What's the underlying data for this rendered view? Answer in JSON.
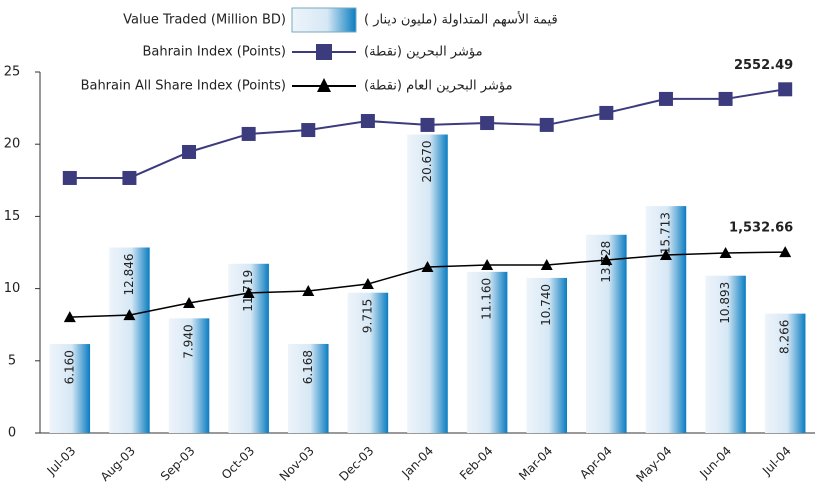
{
  "chart_data": {
    "type": "bar",
    "categories": [
      "Jul-03",
      "Aug-03",
      "Sep-03",
      "Oct-03",
      "Nov-03",
      "Dec-03",
      "Jan-04",
      "Feb-04",
      "Mar-04",
      "Apr-04",
      "May-04",
      "Jun-04",
      "Jul-04"
    ],
    "ylim": [
      0,
      25
    ],
    "yticks": [
      0,
      5,
      10,
      15,
      20,
      25
    ],
    "series": [
      {
        "name": "Value Traded (Million BD)",
        "name_ar": "قيمة الأسهم المتداولة (مليون دينار )",
        "type": "bar",
        "color": "#0a7cc1",
        "values": [
          6.16,
          12.846,
          7.94,
          11.719,
          6.168,
          9.715,
          20.67,
          11.16,
          10.74,
          13.728,
          15.713,
          10.893,
          8.266
        ],
        "value_labels": [
          "6.160",
          "12.846",
          "7.940",
          "11.719",
          "6.168",
          "9.715",
          "20.670",
          "11.160",
          "10.740",
          "13.728",
          "15.713",
          "10.893",
          "8.266"
        ]
      },
      {
        "name": "Bahrain Index (Points)",
        "name_ar": "مؤشر البحرين (نقطة)",
        "type": "line",
        "marker": "square",
        "color": "#3b3b7e",
        "ylim": [
          0,
          2681
        ],
        "values": [
          1894,
          1894,
          2087,
          2221,
          2250,
          2317,
          2288,
          2302,
          2288,
          2377,
          2481,
          2481,
          2552.49
        ],
        "value_labels": [
          null,
          null,
          null,
          null,
          null,
          null,
          null,
          null,
          null,
          null,
          null,
          null,
          "2552.49"
        ]
      },
      {
        "name": "Bahrain All Share Index (Points)",
        "name_ar": "مؤشر البحرين العام (نقطة)",
        "type": "line",
        "marker": "triangle",
        "color": "#000000",
        "ylim": [
          0,
          3058
        ],
        "values": [
          982,
          999,
          1101,
          1186,
          1203,
          1262,
          1406,
          1423,
          1423,
          1465,
          1508,
          1525,
          1532.66
        ],
        "value_labels": [
          null,
          null,
          null,
          null,
          null,
          null,
          null,
          null,
          null,
          null,
          null,
          null,
          "1,532.66"
        ]
      }
    ]
  }
}
